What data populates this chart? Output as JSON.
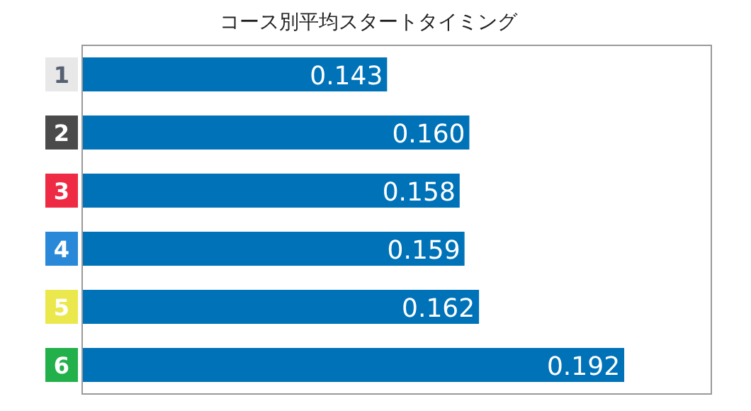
{
  "chart_data": {
    "type": "bar",
    "orientation": "horizontal",
    "title": "コース別平均スタートタイミング",
    "categories": [
      "1",
      "2",
      "3",
      "4",
      "5",
      "6"
    ],
    "values": [
      0.143,
      0.16,
      0.158,
      0.159,
      0.162,
      0.192
    ],
    "color": "#0072b8",
    "xlim": [
      0.08,
      0.21
    ],
    "tick_labels": "y",
    "value_labels": [
      "0.143",
      "0.160",
      "0.158",
      "0.159",
      "0.162",
      "0.192"
    ]
  }
}
